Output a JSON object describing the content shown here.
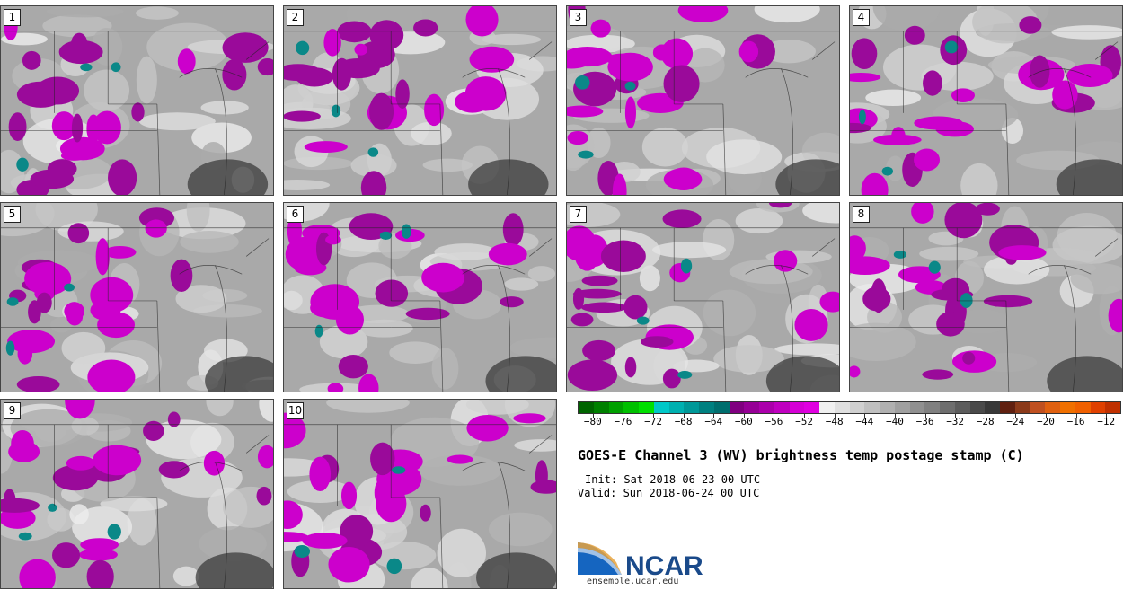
{
  "panels": [
    {
      "label": "1"
    },
    {
      "label": "2"
    },
    {
      "label": "3"
    },
    {
      "label": "4"
    },
    {
      "label": "5"
    },
    {
      "label": "6"
    },
    {
      "label": "7"
    },
    {
      "label": "8"
    },
    {
      "label": "9"
    },
    {
      "label": "10"
    }
  ],
  "colorbar": {
    "colors": [
      "#006400",
      "#008000",
      "#00a000",
      "#00c000",
      "#00e000",
      "#00c8c8",
      "#00b0b0",
      "#009898",
      "#008080",
      "#006e6e",
      "#800080",
      "#960096",
      "#ab00ab",
      "#c000c0",
      "#d500d5",
      "#e000e0",
      "#f0f0f0",
      "#e0e0e0",
      "#d0d0d0",
      "#c0c0c0",
      "#b0b0b0",
      "#a0a0a0",
      "#909090",
      "#808080",
      "#6e6e6e",
      "#5c5c5c",
      "#4a4a4a",
      "#383838",
      "#602010",
      "#8b3a1a",
      "#c05020",
      "#e06010",
      "#f07000",
      "#f06000",
      "#e04000",
      "#c03000"
    ],
    "ticks": [
      "−80",
      "−76",
      "−72",
      "−68",
      "−64",
      "−60",
      "−56",
      "−52",
      "−48",
      "−44",
      "−40",
      "−36",
      "−32",
      "−28",
      "−24",
      "−20",
      "−16",
      "−12"
    ],
    "tick_values": [
      -80,
      -76,
      -72,
      -68,
      -64,
      -60,
      -56,
      -52,
      -48,
      -44,
      -40,
      -36,
      -32,
      -28,
      -24,
      -20,
      -16,
      -12
    ],
    "range": [
      -82,
      -10
    ]
  },
  "title": "GOES-E Channel 3 (WV) brightness temp postage stamp (C)",
  "init_text": "Init: Sat 2018-06-23 00 UTC",
  "valid_text": "Valid: Sun 2018-06-24 00 UTC",
  "logo": {
    "text": "NCAR",
    "url": "ensemble.ucar.edu"
  }
}
